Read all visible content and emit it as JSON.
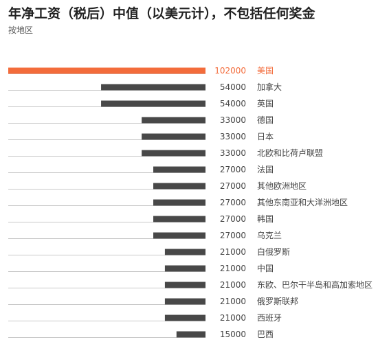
{
  "title": "年净工资（税后）中值（以美元计），不包括任何奖金",
  "subtitle": "按地区",
  "colors": {
    "highlight": "#f36c3b",
    "bar": "#484848",
    "baseline": "#c8c8c8"
  },
  "chart_data": {
    "type": "bar",
    "orientation": "horizontal",
    "categories": [
      "美国",
      "加拿大",
      "英国",
      "德国",
      "日本",
      "北欧和比荷卢联盟",
      "法国",
      "其他欧洲地区",
      "其他东南亚和大洋洲地区",
      "韩国",
      "乌克兰",
      "白俄罗斯",
      "中国",
      "东欧、巴尔干半岛和高加索地区",
      "俄罗斯联邦",
      "西班牙",
      "巴西"
    ],
    "values": [
      102000,
      54000,
      54000,
      33000,
      33000,
      33000,
      27000,
      27000,
      27000,
      27000,
      27000,
      21000,
      21000,
      21000,
      21000,
      21000,
      15000
    ],
    "highlight_index": 0,
    "xlim": [
      0,
      102000
    ]
  }
}
